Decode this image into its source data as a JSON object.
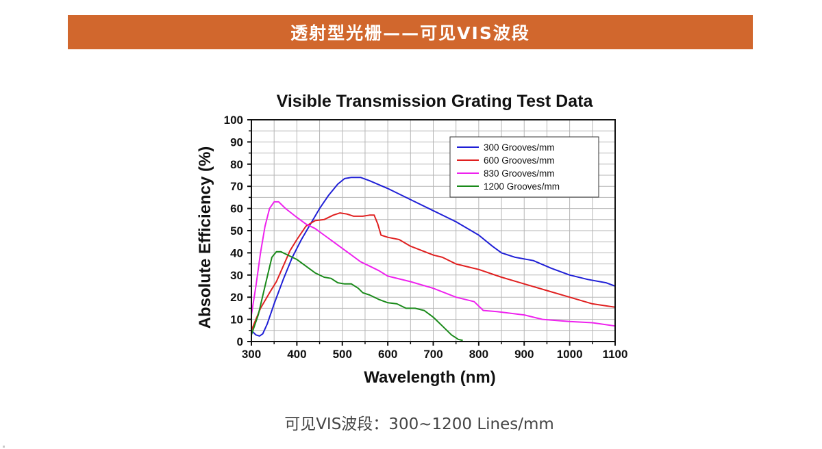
{
  "banner": {
    "title": "透射型光栅——可见VIS波段",
    "color": "#d1672d"
  },
  "caption": "可见VIS波段：300~1200 Lines/mm",
  "chart_data": {
    "type": "line",
    "title": "Visible Transmission Grating Test Data",
    "xlabel": "Wavelength (nm)",
    "ylabel": "Absolute Efficiency (%)",
    "xlim": [
      300,
      1100
    ],
    "ylim": [
      0,
      100
    ],
    "x_ticks": [
      "300",
      "400",
      "500",
      "600",
      "700",
      "800",
      "900",
      "1000",
      "1100"
    ],
    "y_ticks": [
      "0",
      "10",
      "20",
      "30",
      "40",
      "50",
      "60",
      "70",
      "80",
      "90",
      "100"
    ],
    "grid": true,
    "legend_position": "top-right",
    "series": [
      {
        "name": "300 Grooves/mm",
        "color": "#1f1fd6",
        "points": [
          [
            300,
            5
          ],
          [
            310,
            3
          ],
          [
            318,
            2.5
          ],
          [
            325,
            3.5
          ],
          [
            335,
            8
          ],
          [
            350,
            17
          ],
          [
            370,
            28
          ],
          [
            390,
            38
          ],
          [
            410,
            46
          ],
          [
            430,
            53
          ],
          [
            450,
            60
          ],
          [
            470,
            66
          ],
          [
            490,
            71
          ],
          [
            505,
            73.5
          ],
          [
            520,
            74
          ],
          [
            540,
            74
          ],
          [
            560,
            72.5
          ],
          [
            600,
            69
          ],
          [
            650,
            64
          ],
          [
            700,
            59
          ],
          [
            750,
            54
          ],
          [
            800,
            48
          ],
          [
            830,
            43
          ],
          [
            850,
            40
          ],
          [
            880,
            38
          ],
          [
            920,
            36.5
          ],
          [
            960,
            33
          ],
          [
            1000,
            30
          ],
          [
            1040,
            28
          ],
          [
            1080,
            26.5
          ],
          [
            1100,
            25
          ]
        ]
      },
      {
        "name": "600 Grooves/mm",
        "color": "#e02020",
        "points": [
          [
            300,
            5
          ],
          [
            310,
            10
          ],
          [
            320,
            15
          ],
          [
            340,
            22
          ],
          [
            355,
            27
          ],
          [
            370,
            34
          ],
          [
            385,
            41
          ],
          [
            400,
            46
          ],
          [
            420,
            52
          ],
          [
            440,
            54.5
          ],
          [
            460,
            55
          ],
          [
            480,
            57
          ],
          [
            495,
            58
          ],
          [
            510,
            57.5
          ],
          [
            525,
            56.5
          ],
          [
            545,
            56.5
          ],
          [
            560,
            57
          ],
          [
            570,
            57
          ],
          [
            578,
            53
          ],
          [
            585,
            48
          ],
          [
            600,
            47
          ],
          [
            625,
            46
          ],
          [
            650,
            43
          ],
          [
            700,
            39
          ],
          [
            720,
            38
          ],
          [
            750,
            35
          ],
          [
            780,
            33.5
          ],
          [
            800,
            32.5
          ],
          [
            850,
            29
          ],
          [
            900,
            26
          ],
          [
            950,
            23
          ],
          [
            1000,
            20
          ],
          [
            1050,
            17
          ],
          [
            1100,
            15.5
          ]
        ]
      },
      {
        "name": "830 Grooves/mm",
        "color": "#ee22ee",
        "points": [
          [
            300,
            12
          ],
          [
            310,
            25
          ],
          [
            320,
            40
          ],
          [
            330,
            52
          ],
          [
            340,
            60
          ],
          [
            350,
            63
          ],
          [
            360,
            63
          ],
          [
            375,
            60
          ],
          [
            400,
            56
          ],
          [
            420,
            53
          ],
          [
            440,
            51
          ],
          [
            460,
            48
          ],
          [
            480,
            45
          ],
          [
            500,
            42
          ],
          [
            520,
            39
          ],
          [
            540,
            36
          ],
          [
            560,
            34
          ],
          [
            580,
            32
          ],
          [
            600,
            29.5
          ],
          [
            650,
            27
          ],
          [
            700,
            24
          ],
          [
            750,
            20
          ],
          [
            790,
            18
          ],
          [
            810,
            14
          ],
          [
            840,
            13.5
          ],
          [
            900,
            12
          ],
          [
            940,
            10
          ],
          [
            1000,
            9
          ],
          [
            1050,
            8.5
          ],
          [
            1100,
            7
          ]
        ]
      },
      {
        "name": "1200 Grooves/mm",
        "color": "#1a8a1a",
        "points": [
          [
            300,
            3
          ],
          [
            315,
            12
          ],
          [
            330,
            25
          ],
          [
            345,
            38
          ],
          [
            355,
            40.5
          ],
          [
            365,
            40.5
          ],
          [
            380,
            39
          ],
          [
            400,
            37
          ],
          [
            420,
            34
          ],
          [
            440,
            31
          ],
          [
            460,
            29
          ],
          [
            475,
            28.5
          ],
          [
            490,
            26.5
          ],
          [
            505,
            26
          ],
          [
            520,
            26
          ],
          [
            535,
            24
          ],
          [
            545,
            22
          ],
          [
            560,
            21
          ],
          [
            580,
            19
          ],
          [
            600,
            17.5
          ],
          [
            620,
            17
          ],
          [
            640,
            15
          ],
          [
            660,
            15
          ],
          [
            680,
            14
          ],
          [
            700,
            11
          ],
          [
            720,
            7
          ],
          [
            740,
            3
          ],
          [
            755,
            1
          ],
          [
            765,
            0.5
          ]
        ]
      }
    ]
  }
}
